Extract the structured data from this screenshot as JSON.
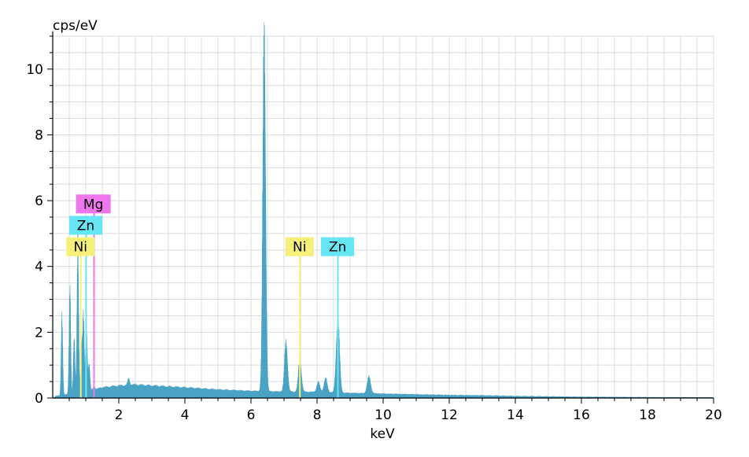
{
  "chart_data": {
    "type": "area",
    "title": "",
    "xlabel": "keV",
    "ylabel": "cps/eV",
    "xlim": [
      0,
      20
    ],
    "ylim": [
      0,
      11
    ],
    "grid": true,
    "xticks": [
      2,
      4,
      6,
      8,
      10,
      12,
      14,
      16,
      18,
      20
    ],
    "yticks": [
      0,
      2,
      4,
      6,
      8,
      10
    ],
    "x_tick_labels": [
      "2",
      "4",
      "6",
      "8",
      "10",
      "12",
      "14",
      "16",
      "18",
      "20"
    ],
    "y_tick_labels": [
      "0",
      "2",
      "4",
      "6",
      "8",
      "10"
    ],
    "spectrum_color": "#4aa3c4",
    "spectrum": {
      "background": [
        [
          0.1,
          0.05
        ],
        [
          0.5,
          0.12
        ],
        [
          1.0,
          0.18
        ],
        [
          1.5,
          0.3
        ],
        [
          2.0,
          0.35
        ],
        [
          2.5,
          0.38
        ],
        [
          3.0,
          0.35
        ],
        [
          4.0,
          0.3
        ],
        [
          5.0,
          0.24
        ],
        [
          6.0,
          0.2
        ],
        [
          7.0,
          0.18
        ],
        [
          8.0,
          0.17
        ],
        [
          9.0,
          0.14
        ],
        [
          10.0,
          0.12
        ],
        [
          11.0,
          0.1
        ],
        [
          12.0,
          0.08
        ],
        [
          13.0,
          0.07
        ],
        [
          14.0,
          0.05
        ],
        [
          15.0,
          0.04
        ],
        [
          16.0,
          0.03
        ],
        [
          17.0,
          0.025
        ],
        [
          18.0,
          0.02
        ],
        [
          20.0,
          0.015
        ]
      ],
      "peaks": [
        {
          "x": 0.28,
          "y": 2.35
        },
        {
          "x": 0.52,
          "y": 3.1
        },
        {
          "x": 0.65,
          "y": 1.8
        },
        {
          "x": 0.76,
          "y": 4.55
        },
        {
          "x": 0.87,
          "y": 1.5
        },
        {
          "x": 0.93,
          "y": 2.3
        },
        {
          "x": 1.02,
          "y": 2.05
        },
        {
          "x": 1.1,
          "y": 1.0
        },
        {
          "x": 1.25,
          "y": 0.35
        },
        {
          "x": 2.3,
          "y": 0.55
        },
        {
          "x": 6.4,
          "y": 10.65
        },
        {
          "x": 7.06,
          "y": 1.65
        },
        {
          "x": 7.48,
          "y": 1.1
        },
        {
          "x": 8.04,
          "y": 0.45
        },
        {
          "x": 8.26,
          "y": 0.55
        },
        {
          "x": 8.63,
          "y": 2.3
        },
        {
          "x": 9.57,
          "y": 0.6
        }
      ]
    },
    "element_markers": [
      {
        "label": "Mg",
        "color": "#ee77ee",
        "lines": [
          1.25
        ],
        "label_y": 5.9
      },
      {
        "label": "Zn",
        "color": "#66e6f2",
        "lines": [
          1.01,
          8.63
        ],
        "label_y": 5.25
      },
      {
        "label": "Ni",
        "color": "#f4f07a",
        "lines": [
          0.85,
          7.48
        ],
        "label_y": 4.6
      },
      {
        "label": "Ni",
        "color": "#f4f07a",
        "lines": [
          7.48
        ],
        "label_y": 4.6,
        "anchor_x": 7.48
      },
      {
        "label": "Zn",
        "color": "#66e6f2",
        "lines": [
          8.63
        ],
        "label_y": 4.6,
        "anchor_x": 8.63
      }
    ]
  }
}
